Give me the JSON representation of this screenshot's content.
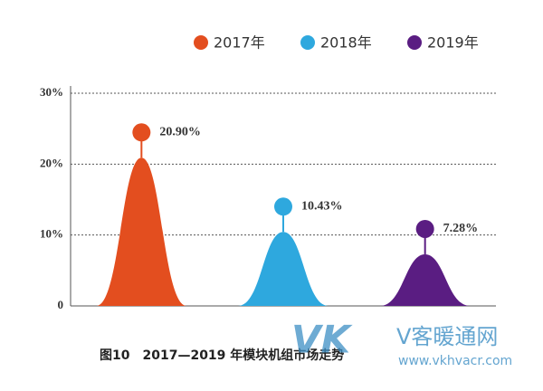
{
  "chart_data": {
    "type": "peak",
    "caption": "图10　2017—2019 年模块机组市场走势",
    "categories": [
      "2017年",
      "2018年",
      "2019年"
    ],
    "values": [
      20.9,
      10.43,
      7.28
    ],
    "value_labels": [
      "20.90%",
      "10.43%",
      "7.28%"
    ],
    "colors": [
      "#e34e1f",
      "#2ea8de",
      "#5a1d82"
    ],
    "ylim": [
      0,
      30
    ],
    "yticks": [
      0,
      {
        "value": 10,
        "label": "10%"
      },
      {
        "value": 20,
        "label": "20%"
      },
      {
        "value": 30,
        "label": "30%"
      }
    ],
    "grid": true,
    "legend": "top"
  },
  "watermark": {
    "logo": "VK",
    "name": "V客暖通网",
    "url": "www.vkhvacr.com"
  }
}
